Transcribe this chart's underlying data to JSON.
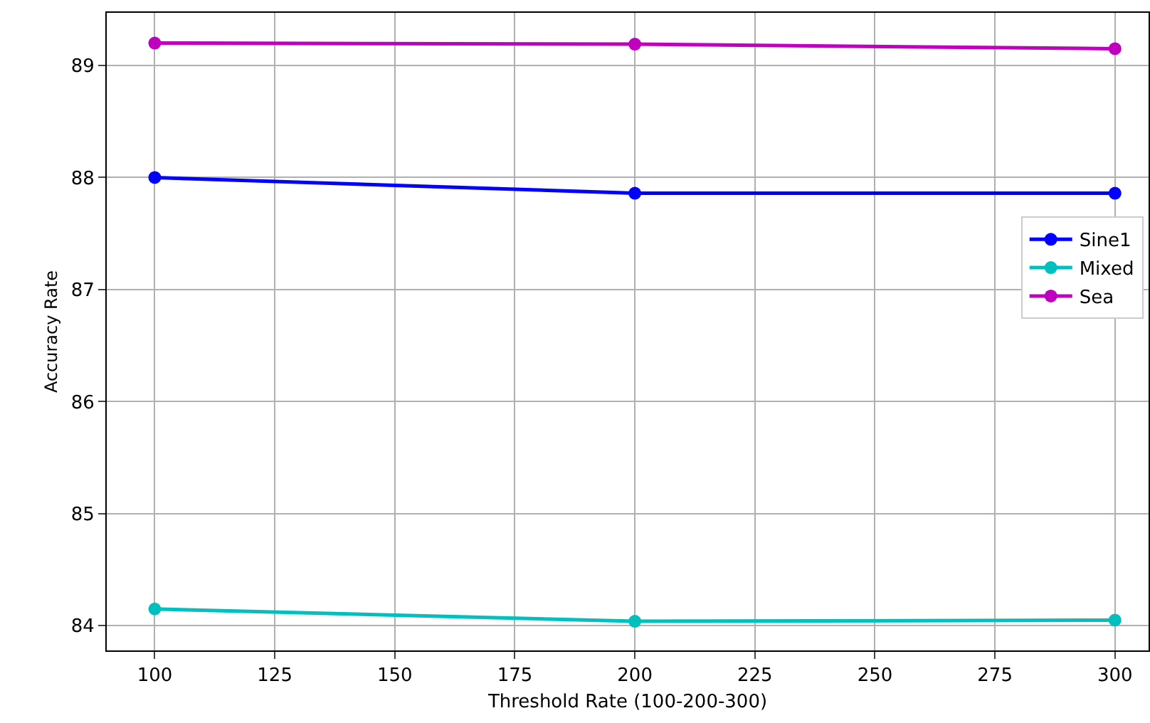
{
  "chart_data": {
    "type": "line",
    "xlabel": "Threshold Rate (100-200-300)",
    "ylabel": "Accuracy Rate",
    "x": [
      100,
      200,
      300
    ],
    "series": [
      {
        "name": "Sine1",
        "color": "#0000ff",
        "values": [
          88.0,
          87.86,
          87.86
        ]
      },
      {
        "name": "Mixed",
        "color": "#00bfbf",
        "values": [
          84.15,
          84.04,
          84.05
        ]
      },
      {
        "name": "Sea",
        "color": "#bf00bf",
        "values": [
          89.2,
          89.19,
          89.15
        ]
      }
    ],
    "xlim": [
      90,
      307
    ],
    "ylim": [
      83.78,
      89.47
    ],
    "xticks": [
      100,
      125,
      150,
      175,
      200,
      225,
      250,
      275,
      300
    ],
    "yticks": [
      84,
      85,
      86,
      87,
      88,
      89
    ],
    "grid": true,
    "legend": "right",
    "marker": "circle",
    "line_style": "solid"
  }
}
